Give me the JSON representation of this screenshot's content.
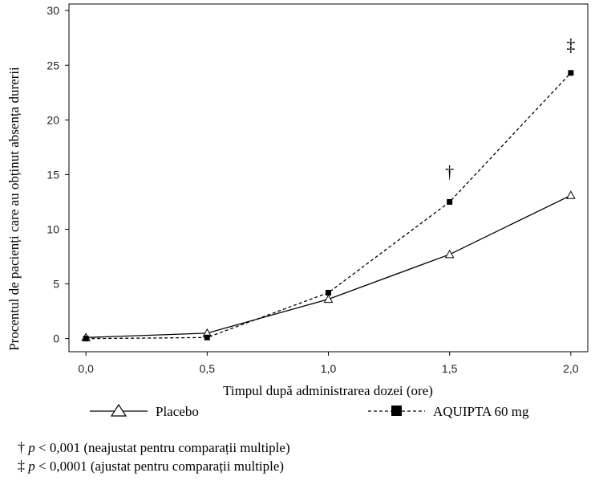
{
  "chart_data": {
    "type": "line",
    "xlabel": "Timpul după administrarea dozei (ore)",
    "ylabel": "Procentul de pacienți care au obținut absența durerii",
    "x": [
      0.0,
      0.5,
      1.0,
      1.5,
      2.0
    ],
    "x_tick_labels": [
      "0,0",
      "0,5",
      "1,0",
      "1,5",
      "2,0"
    ],
    "xlim": [
      -0.07,
      2.07
    ],
    "ylim": [
      -1.2,
      30.6
    ],
    "y_ticks": [
      0,
      5,
      10,
      15,
      20,
      25,
      30
    ],
    "y_tick_labels": [
      "0",
      "5",
      "10",
      "15",
      "20",
      "25",
      "30"
    ],
    "grid": false,
    "legend_position": "bottom",
    "series": [
      {
        "name": "Placebo",
        "values": [
          0.1,
          0.5,
          3.6,
          7.7,
          13.1
        ],
        "color": "#000000",
        "line_style": "solid",
        "marker": "triangle-open"
      },
      {
        "name": "AQUIPTA 60 mg",
        "values": [
          0.0,
          0.1,
          4.2,
          12.5,
          24.3
        ],
        "color": "#000000",
        "line_style": "dashed",
        "marker": "square-filled"
      }
    ],
    "annotations": [
      {
        "text": "†",
        "x": 1.5,
        "y": 14.7,
        "series": "AQUIPTA 60 mg"
      },
      {
        "text": "‡",
        "x": 2.0,
        "y": 26.3,
        "series": "AQUIPTA 60 mg"
      }
    ]
  },
  "footnotes": [
    {
      "symbol": "†",
      "p": "p",
      "text": " < 0,001 (neajustat pentru comparații multiple)"
    },
    {
      "symbol": "‡",
      "p": "p",
      "text": " < 0,0001 (ajustat pentru comparații multiple)"
    }
  ]
}
